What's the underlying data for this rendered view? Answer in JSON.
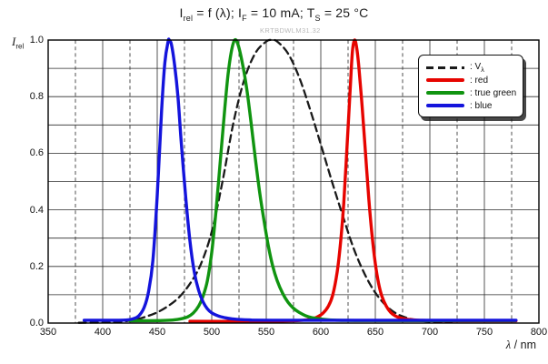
{
  "title": {
    "p1": "I",
    "s1": "rel",
    "p2": " = f (λ); I",
    "s2": "F",
    "p3": " = 10 mA; T",
    "s3": "S",
    "p4": " = 25 °C"
  },
  "watermark": "KRTBDWLM31.32",
  "y_axis": {
    "label_main": "I",
    "label_sub": "rel",
    "ticks": [
      {
        "label": "1.0",
        "value": 1.0
      },
      {
        "label": "0.8",
        "value": 0.8
      },
      {
        "label": "0.6",
        "value": 0.6
      },
      {
        "label": "0.4",
        "value": 0.4
      },
      {
        "label": "0.2",
        "value": 0.2
      },
      {
        "label": "0.0",
        "value": 0.0
      }
    ]
  },
  "x_axis": {
    "label_var": "λ",
    "label_rest": " / nm",
    "ticks": [
      {
        "label": "350",
        "value": 350
      },
      {
        "label": "400",
        "value": 400
      },
      {
        "label": "450",
        "value": 450
      },
      {
        "label": "500",
        "value": 500
      },
      {
        "label": "550",
        "value": 550
      },
      {
        "label": "600",
        "value": 600
      },
      {
        "label": "650",
        "value": 650
      },
      {
        "label": "700",
        "value": 700
      },
      {
        "label": "750",
        "value": 750
      },
      {
        "label": "800",
        "value": 800
      }
    ]
  },
  "legend": {
    "vl_prefix": ": V",
    "vl_sub": "λ",
    "red": ": red",
    "green": ": true green",
    "blue": ": blue"
  },
  "chart_data": {
    "type": "line",
    "title": "I_rel = f (lambda); I_F = 10 mA; T_S = 25 C",
    "xlabel": "λ / nm",
    "ylabel": "I_rel",
    "xlim": [
      350,
      800
    ],
    "ylim": [
      0,
      1
    ],
    "grid": true,
    "legend_position": "upper right",
    "grid_lines": {
      "x_solid": [
        400,
        450,
        500,
        550,
        600,
        650,
        700,
        750
      ],
      "x_dashed": [
        375,
        425,
        475,
        525,
        575,
        625,
        675,
        725,
        775
      ],
      "y_solid": [
        0.1,
        0.2,
        0.3,
        0.4,
        0.5,
        0.6,
        0.7,
        0.8,
        0.9
      ]
    },
    "series": [
      {
        "name": "V_lambda",
        "color": "#1a1a1a",
        "dash": true,
        "width": 2.3,
        "points": [
          [
            378,
            0.001
          ],
          [
            400,
            0.002
          ],
          [
            410,
            0.003
          ],
          [
            420,
            0.006
          ],
          [
            430,
            0.012
          ],
          [
            440,
            0.023
          ],
          [
            450,
            0.038
          ],
          [
            460,
            0.06
          ],
          [
            470,
            0.091
          ],
          [
            480,
            0.139
          ],
          [
            490,
            0.208
          ],
          [
            500,
            0.323
          ],
          [
            510,
            0.503
          ],
          [
            520,
            0.71
          ],
          [
            530,
            0.862
          ],
          [
            540,
            0.954
          ],
          [
            550,
            0.995
          ],
          [
            555,
            1.0
          ],
          [
            560,
            0.995
          ],
          [
            570,
            0.952
          ],
          [
            580,
            0.87
          ],
          [
            590,
            0.757
          ],
          [
            600,
            0.631
          ],
          [
            610,
            0.503
          ],
          [
            620,
            0.381
          ],
          [
            630,
            0.265
          ],
          [
            640,
            0.175
          ],
          [
            650,
            0.107
          ],
          [
            660,
            0.061
          ],
          [
            670,
            0.032
          ],
          [
            680,
            0.017
          ],
          [
            690,
            0.009
          ],
          [
            700,
            0.005
          ],
          [
            710,
            0.003
          ],
          [
            720,
            0.002
          ]
        ]
      },
      {
        "name": "red",
        "color": "#e60400",
        "dash": false,
        "width": 3.4,
        "points": [
          [
            480,
            0.006
          ],
          [
            540,
            0.006
          ],
          [
            565,
            0.007
          ],
          [
            580,
            0.009
          ],
          [
            590,
            0.013
          ],
          [
            596,
            0.02
          ],
          [
            602,
            0.035
          ],
          [
            607,
            0.06
          ],
          [
            611,
            0.1
          ],
          [
            615,
            0.18
          ],
          [
            618,
            0.28
          ],
          [
            621,
            0.42
          ],
          [
            624,
            0.62
          ],
          [
            627,
            0.83
          ],
          [
            629,
            0.96
          ],
          [
            631,
            1.0
          ],
          [
            633,
            0.97
          ],
          [
            635,
            0.9
          ],
          [
            638,
            0.76
          ],
          [
            641,
            0.6
          ],
          [
            644,
            0.44
          ],
          [
            647,
            0.31
          ],
          [
            650,
            0.21
          ],
          [
            653,
            0.14
          ],
          [
            656,
            0.095
          ],
          [
            660,
            0.06
          ],
          [
            664,
            0.038
          ],
          [
            668,
            0.026
          ],
          [
            673,
            0.018
          ],
          [
            680,
            0.013
          ],
          [
            690,
            0.01
          ],
          [
            710,
            0.008
          ],
          [
            779,
            0.008
          ]
        ]
      },
      {
        "name": "true green",
        "color": "#109410",
        "dash": false,
        "width": 3.4,
        "points": [
          [
            425,
            0.008
          ],
          [
            455,
            0.009
          ],
          [
            465,
            0.011
          ],
          [
            472,
            0.015
          ],
          [
            478,
            0.022
          ],
          [
            483,
            0.035
          ],
          [
            488,
            0.06
          ],
          [
            492,
            0.095
          ],
          [
            496,
            0.15
          ],
          [
            500,
            0.25
          ],
          [
            504,
            0.4
          ],
          [
            508,
            0.58
          ],
          [
            512,
            0.76
          ],
          [
            515,
            0.88
          ],
          [
            518,
            0.96
          ],
          [
            521,
            1.0
          ],
          [
            524,
            0.985
          ],
          [
            528,
            0.92
          ],
          [
            532,
            0.83
          ],
          [
            536,
            0.71
          ],
          [
            540,
            0.58
          ],
          [
            544,
            0.46
          ],
          [
            548,
            0.36
          ],
          [
            552,
            0.27
          ],
          [
            556,
            0.2
          ],
          [
            560,
            0.15
          ],
          [
            565,
            0.105
          ],
          [
            570,
            0.073
          ],
          [
            575,
            0.052
          ],
          [
            580,
            0.038
          ],
          [
            586,
            0.026
          ],
          [
            592,
            0.019
          ],
          [
            600,
            0.014
          ],
          [
            615,
            0.01
          ],
          [
            650,
            0.009
          ],
          [
            778,
            0.009
          ]
        ]
      },
      {
        "name": "blue",
        "color": "#1414dc",
        "dash": false,
        "width": 3.4,
        "points": [
          [
            383,
            0.01
          ],
          [
            415,
            0.01
          ],
          [
            422,
            0.011
          ],
          [
            428,
            0.015
          ],
          [
            433,
            0.025
          ],
          [
            438,
            0.055
          ],
          [
            442,
            0.11
          ],
          [
            446,
            0.22
          ],
          [
            450,
            0.45
          ],
          [
            454,
            0.75
          ],
          [
            457,
            0.92
          ],
          [
            460,
            0.995
          ],
          [
            461,
            1.0
          ],
          [
            463,
            0.985
          ],
          [
            466,
            0.91
          ],
          [
            469,
            0.8
          ],
          [
            472,
            0.64
          ],
          [
            476,
            0.45
          ],
          [
            480,
            0.29
          ],
          [
            484,
            0.18
          ],
          [
            488,
            0.115
          ],
          [
            492,
            0.075
          ],
          [
            496,
            0.05
          ],
          [
            500,
            0.036
          ],
          [
            506,
            0.025
          ],
          [
            512,
            0.019
          ],
          [
            520,
            0.014
          ],
          [
            535,
            0.011
          ],
          [
            560,
            0.01
          ],
          [
            779,
            0.01
          ]
        ]
      }
    ]
  }
}
